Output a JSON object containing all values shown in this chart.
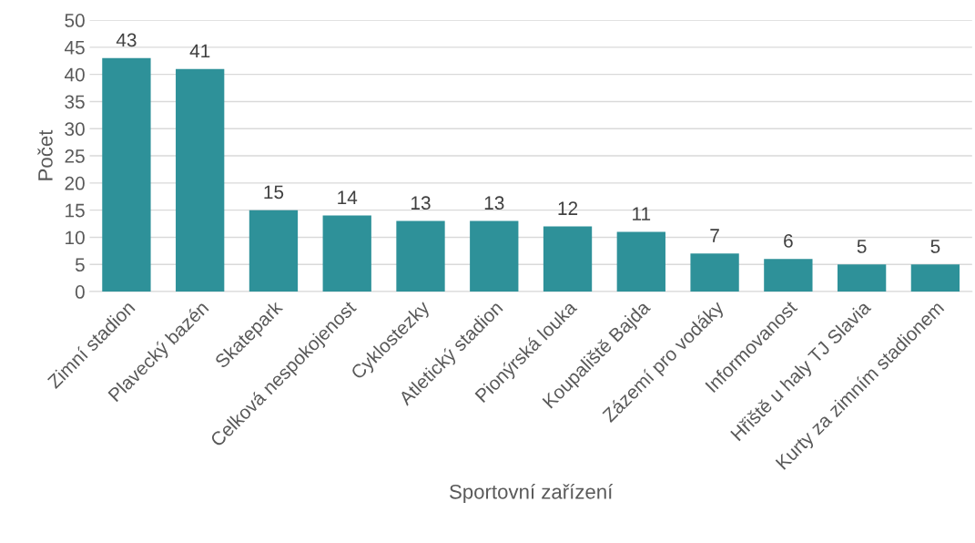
{
  "chart_data": {
    "type": "bar",
    "xlabel": "Sportovní zařízení",
    "ylabel": "Počet",
    "categories": [
      "Zimní stadion",
      "Plavecký bazén",
      "Skatepark",
      "Celková nespokojenost",
      "Cyklostezky",
      "Atletický stadion",
      "Pionýrská louka",
      "Koupaliště Bajda",
      "Zázemí pro vodáky",
      "Informovanost",
      "Hřiště u haly TJ Slavia",
      "Kurty za zimním stadionem"
    ],
    "values": [
      43,
      41,
      15,
      14,
      13,
      13,
      12,
      11,
      7,
      6,
      5,
      5
    ],
    "color": "#2e9199",
    "ylim": [
      0,
      50
    ],
    "yticks": [
      0,
      5,
      10,
      15,
      20,
      25,
      30,
      35,
      40,
      45,
      50
    ],
    "grid": "y",
    "data_labels": true
  }
}
